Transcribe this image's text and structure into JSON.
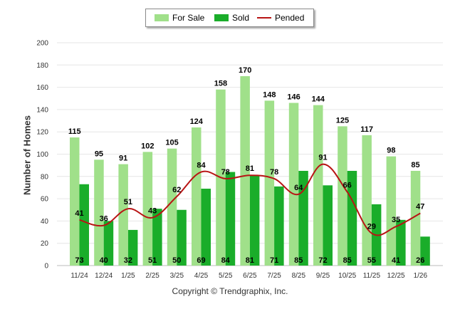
{
  "colors": {
    "for_sale": "#a0e08a",
    "sold": "#1aad2a",
    "pended": "#b81414"
  },
  "legend": {
    "for_sale": "For Sale",
    "sold": "Sold",
    "pended": "Pended"
  },
  "copyright": "Copyright © Trendgraphix, Inc.",
  "chart_data": {
    "type": "bar",
    "title": "",
    "xlabel": "",
    "ylabel": "Number of Homes",
    "ylim": [
      0,
      200
    ],
    "yticks": [
      0,
      20,
      40,
      60,
      80,
      100,
      120,
      140,
      160,
      180,
      200
    ],
    "grid": true,
    "legend_position": "top-center",
    "categories": [
      "11/24",
      "12/24",
      "1/25",
      "2/25",
      "3/25",
      "4/25",
      "5/25",
      "6/25",
      "7/25",
      "8/25",
      "9/25",
      "10/25",
      "11/25",
      "12/25",
      "1/26"
    ],
    "series": [
      {
        "name": "For Sale",
        "type": "bar",
        "values": [
          115,
          95,
          91,
          102,
          105,
          124,
          158,
          170,
          148,
          146,
          144,
          125,
          117,
          98,
          85
        ]
      },
      {
        "name": "Sold",
        "type": "bar",
        "values": [
          73,
          40,
          32,
          51,
          50,
          69,
          84,
          81,
          71,
          85,
          72,
          85,
          55,
          41,
          26
        ]
      },
      {
        "name": "Pended",
        "type": "line",
        "values": [
          41,
          36,
          51,
          43,
          62,
          84,
          78,
          81,
          78,
          64,
          91,
          66,
          29,
          35,
          47
        ]
      }
    ]
  }
}
